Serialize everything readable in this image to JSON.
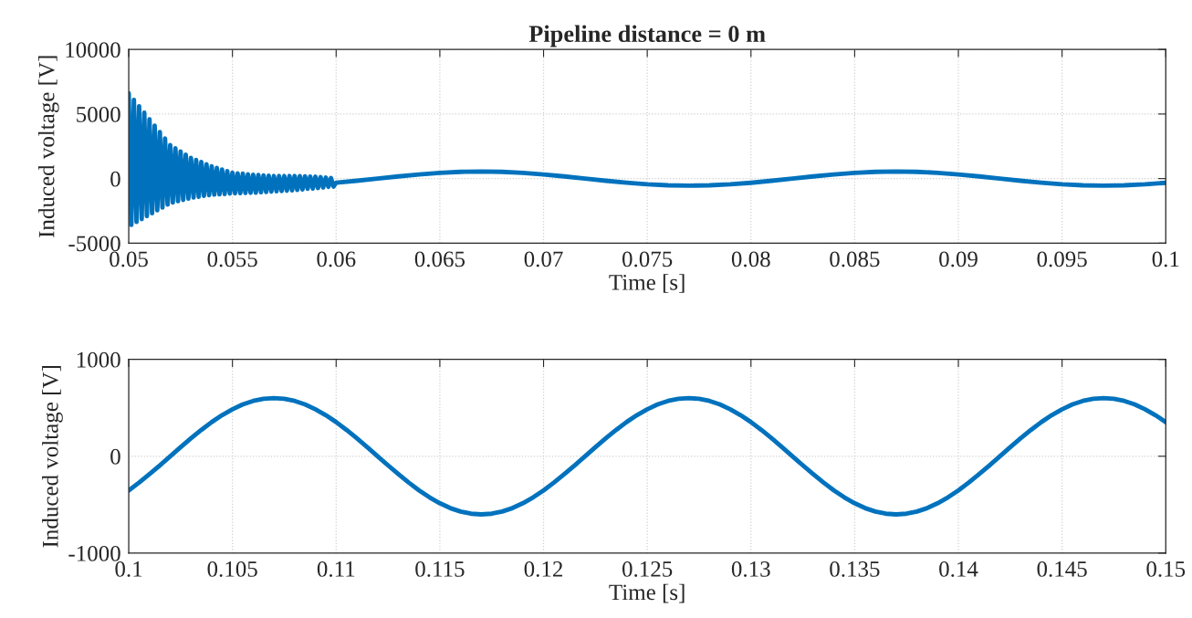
{
  "chart_data": [
    {
      "type": "line",
      "title": "Pipeline distance = 0 m",
      "xlabel": "Time [s]",
      "ylabel": "Induced voltage [V]",
      "xlim": [
        0.05,
        0.1
      ],
      "xticks": [
        0.05,
        0.055,
        0.06,
        0.065,
        0.07,
        0.075,
        0.08,
        0.085,
        0.09,
        0.095,
        0.1
      ],
      "ylim": [
        -5000,
        10000
      ],
      "yticks": [
        -5000,
        0,
        5000,
        10000
      ],
      "grid": true,
      "legend": false,
      "series": [
        {
          "color": "#0072bd",
          "x": [
            0.05,
            0.050125,
            0.05025,
            0.050375,
            0.0505,
            0.050625,
            0.05075,
            0.050875,
            0.051,
            0.051125,
            0.05125,
            0.051375,
            0.0515,
            0.051625,
            0.05175,
            0.051875,
            0.052,
            0.052125,
            0.05225,
            0.052375,
            0.0525,
            0.052625,
            0.05275,
            0.052875,
            0.053,
            0.053125,
            0.05325,
            0.053375,
            0.0535,
            0.053625,
            0.05375,
            0.053875,
            0.054,
            0.054125,
            0.05425,
            0.054375,
            0.0545,
            0.054625,
            0.05475,
            0.054875,
            0.055,
            0.055125,
            0.05525,
            0.055375,
            0.0555,
            0.055625,
            0.05575,
            0.055875,
            0.056,
            0.056125,
            0.05625,
            0.056375,
            0.0565,
            0.056625,
            0.05675,
            0.056875,
            0.057,
            0.057125,
            0.05725,
            0.057375,
            0.0575,
            0.057625,
            0.05775,
            0.057875,
            0.058,
            0.058125,
            0.05825,
            0.058375,
            0.0585,
            0.058625,
            0.05875,
            0.058875,
            0.059,
            0.059125,
            0.05925,
            0.059375,
            0.0595,
            0.059625,
            0.05975,
            0.059875,
            0.06,
            0.061,
            0.062,
            0.063,
            0.064,
            0.065,
            0.066,
            0.067,
            0.068,
            0.069,
            0.07,
            0.071,
            0.072,
            0.073,
            0.074,
            0.075,
            0.076,
            0.077,
            0.078,
            0.079,
            0.08,
            0.081,
            0.082,
            0.083,
            0.084,
            0.085,
            0.086,
            0.087,
            0.088,
            0.089,
            0.09,
            0.091,
            0.092,
            0.093,
            0.094,
            0.095,
            0.096,
            0.097,
            0.098,
            0.099,
            0.1
          ],
          "values": [
            6600,
            -3590,
            6100,
            -3360,
            5600,
            -3140,
            5100,
            -2910,
            4600,
            -2690,
            4100,
            -2460,
            3600,
            -2240,
            3100,
            -2010,
            2600,
            -1850,
            2350,
            -1750,
            2100,
            -1650,
            1850,
            -1550,
            1600,
            -1470,
            1440,
            -1410,
            1280,
            -1340,
            1110,
            -1280,
            950,
            -1240,
            830,
            -1220,
            700,
            -1190,
            580,
            -1160,
            450,
            -1140,
            410,
            -1130,
            380,
            -1110,
            340,
            -1100,
            300,
            -1090,
            280,
            -1060,
            250,
            -1040,
            230,
            -1010,
            200,
            -990,
            200,
            -960,
            200,
            -940,
            200,
            -910,
            200,
            -880,
            190,
            -840,
            180,
            -790,
            160,
            -770,
            150,
            -730,
            110,
            -690,
            80,
            -640,
            40,
            -620,
            -323,
            -170,
            0,
            170,
            323,
            445,
            523,
            550,
            523,
            445,
            323,
            170,
            0,
            -170,
            -323,
            -445,
            -523,
            -550,
            -523,
            -445,
            -323,
            -170,
            0,
            170,
            323,
            445,
            523,
            550,
            523,
            445,
            323,
            170,
            0,
            -170,
            -323,
            -445,
            -523,
            -550,
            -523,
            -445,
            -323
          ]
        }
      ]
    },
    {
      "type": "line",
      "xlabel": "Time [s]",
      "ylabel": "Induced voltage [V]",
      "xlim": [
        0.1,
        0.15
      ],
      "xticks": [
        0.1,
        0.105,
        0.11,
        0.115,
        0.12,
        0.125,
        0.13,
        0.135,
        0.14,
        0.145,
        0.15
      ],
      "ylim": [
        -1000,
        1000
      ],
      "yticks": [
        -1000,
        0,
        1000
      ],
      "grid": true,
      "legend": false,
      "series": [
        {
          "color": "#0072bd",
          "x": [
            0.1,
            0.1005,
            0.101,
            0.1015,
            0.102,
            0.1025,
            0.103,
            0.1035,
            0.104,
            0.1045,
            0.105,
            0.1055,
            0.106,
            0.1065,
            0.107,
            0.1075,
            0.108,
            0.1085,
            0.109,
            0.1095,
            0.11,
            0.1105,
            0.111,
            0.1115,
            0.112,
            0.1125,
            0.113,
            0.1135,
            0.114,
            0.1145,
            0.115,
            0.1155,
            0.116,
            0.1165,
            0.117,
            0.1175,
            0.118,
            0.1185,
            0.119,
            0.1195,
            0.12,
            0.1205,
            0.121,
            0.1215,
            0.122,
            0.1225,
            0.123,
            0.1235,
            0.124,
            0.1245,
            0.125,
            0.1255,
            0.126,
            0.1265,
            0.127,
            0.1275,
            0.128,
            0.1285,
            0.129,
            0.1295,
            0.13,
            0.1305,
            0.131,
            0.1315,
            0.132,
            0.1325,
            0.133,
            0.1335,
            0.134,
            0.1345,
            0.135,
            0.1355,
            0.136,
            0.1365,
            0.137,
            0.1375,
            0.138,
            0.1385,
            0.139,
            0.1395,
            0.14,
            0.1405,
            0.141,
            0.1415,
            0.142,
            0.1425,
            0.143,
            0.1435,
            0.144,
            0.1445,
            0.145,
            0.1455,
            0.146,
            0.1465,
            0.147,
            0.1475,
            0.148,
            0.1485,
            0.149,
            0.1495,
            0.15
          ],
          "values": [
            -353,
            -272,
            -185,
            -94,
            0,
            94,
            185,
            272,
            353,
            424,
            485,
            535,
            571,
            593,
            600,
            593,
            571,
            535,
            485,
            424,
            353,
            272,
            185,
            94,
            0,
            -94,
            -185,
            -272,
            -353,
            -424,
            -485,
            -535,
            -571,
            -593,
            -600,
            -593,
            -571,
            -535,
            -485,
            -424,
            -353,
            -272,
            -185,
            -94,
            0,
            94,
            185,
            272,
            353,
            424,
            485,
            535,
            571,
            593,
            600,
            593,
            571,
            535,
            485,
            424,
            353,
            272,
            185,
            94,
            0,
            -94,
            -185,
            -272,
            -353,
            -424,
            -485,
            -535,
            -571,
            -593,
            -600,
            -593,
            -571,
            -535,
            -485,
            -424,
            -353,
            -272,
            -185,
            -94,
            0,
            94,
            185,
            272,
            353,
            424,
            485,
            535,
            571,
            593,
            600,
            593,
            571,
            535,
            485,
            424,
            353
          ]
        }
      ]
    }
  ]
}
